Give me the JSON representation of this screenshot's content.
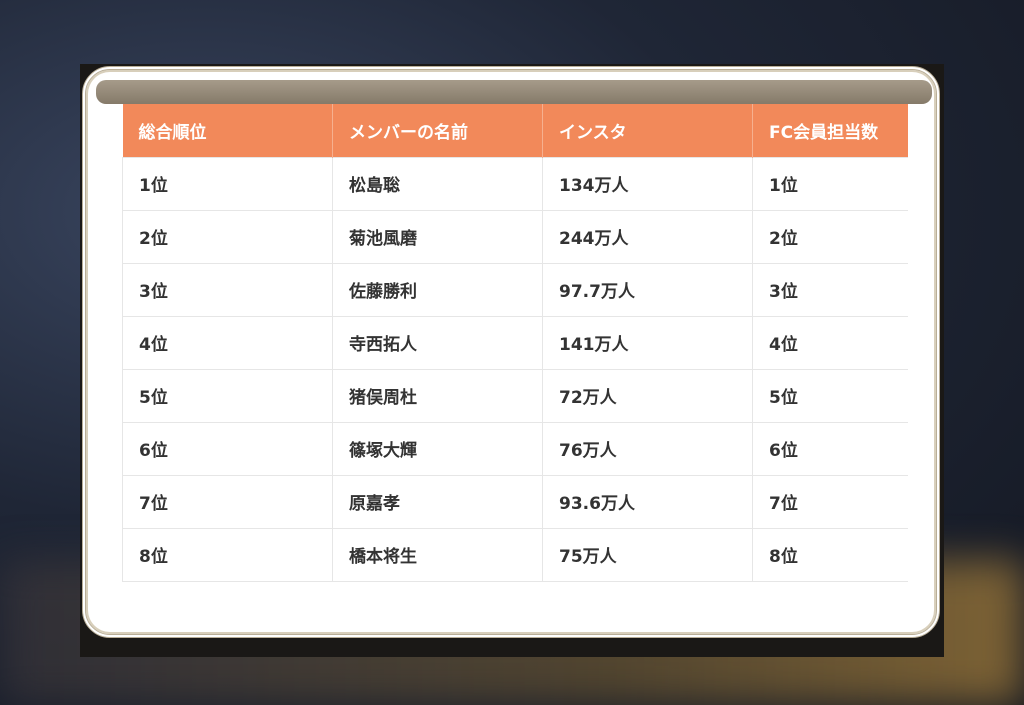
{
  "table": {
    "headers": [
      "総合順位",
      "メンバーの名前",
      "インスタ",
      "FC会員担当数"
    ],
    "rows": [
      [
        "1位",
        "松島聡",
        "134万人",
        "1位"
      ],
      [
        "2位",
        "菊池風磨",
        "244万人",
        "2位"
      ],
      [
        "3位",
        "佐藤勝利",
        "97.7万人",
        "3位"
      ],
      [
        "4位",
        "寺西拓人",
        "141万人",
        "4位"
      ],
      [
        "5位",
        "猪俣周杜",
        "72万人",
        "5位"
      ],
      [
        "6位",
        "篠塚大輝",
        "76万人",
        "6位"
      ],
      [
        "7位",
        "原嘉孝",
        "93.6万人",
        "7位"
      ],
      [
        "8位",
        "橋本将生",
        "75万人",
        "8位"
      ]
    ]
  },
  "colors": {
    "header": "#f2895a",
    "frame": "#b9ae97"
  }
}
